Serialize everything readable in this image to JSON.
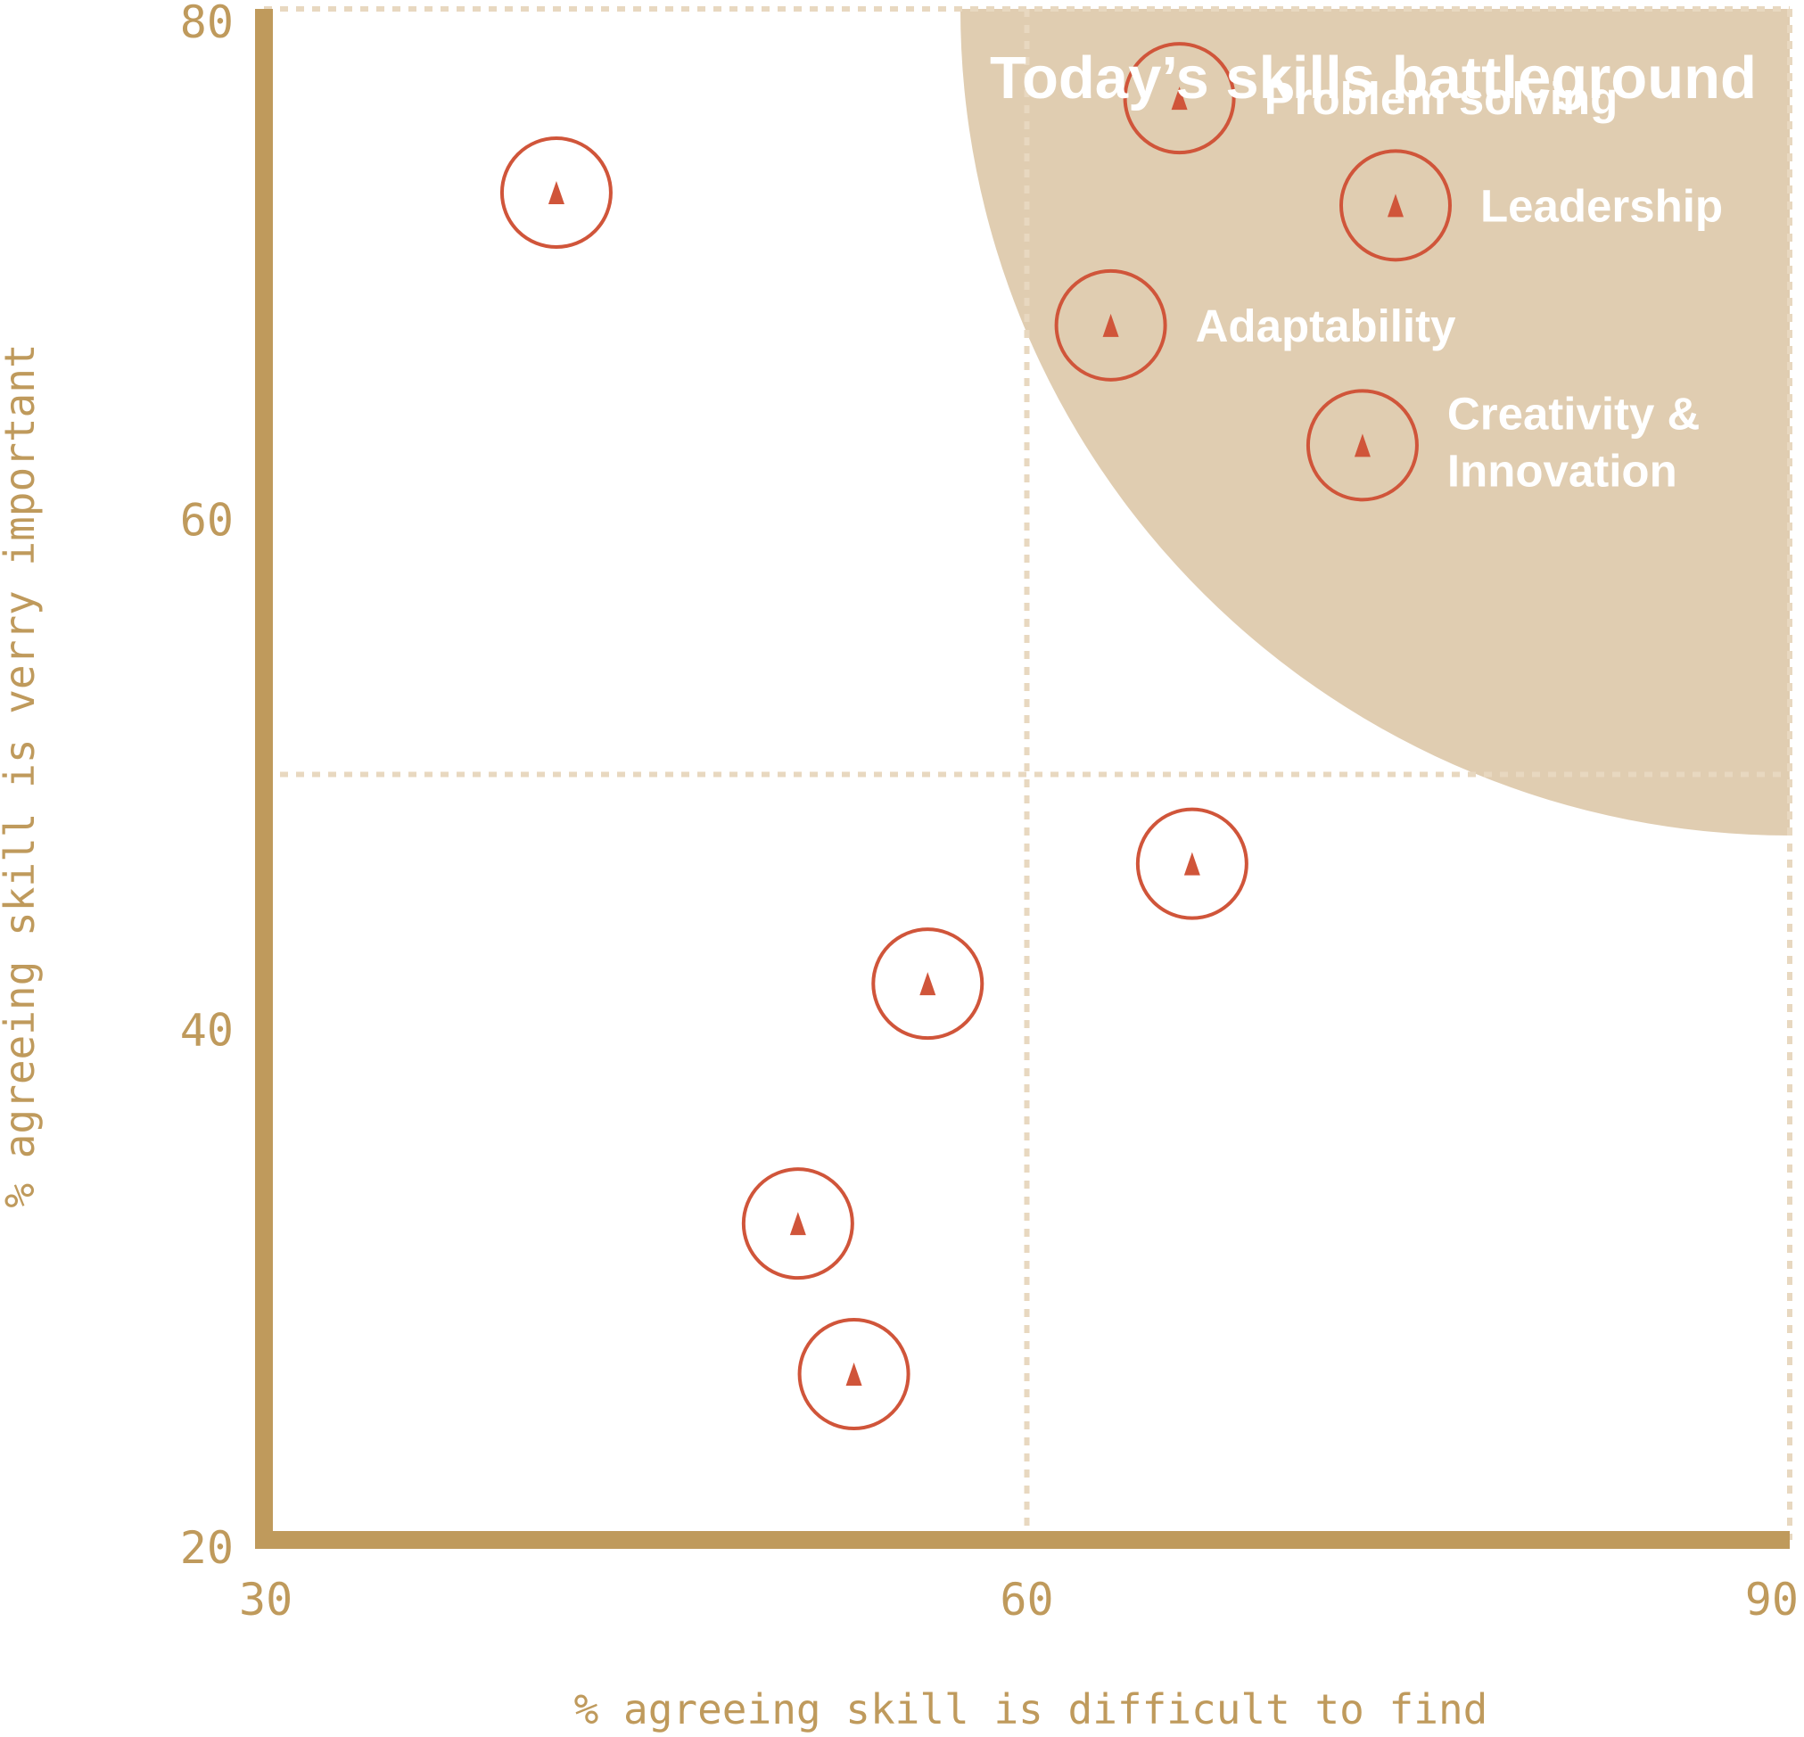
{
  "chart_data": {
    "type": "scatter",
    "title": "",
    "xlabel": "% agreeing skill is difficult to find",
    "ylabel": "% agreeing skill is verry  important",
    "xlim": [
      30,
      90
    ],
    "ylim": [
      20,
      80
    ],
    "xticks": [
      "30",
      "60",
      "90"
    ],
    "yticks": [
      "20",
      "40",
      "60",
      "80"
    ],
    "quadrant_dividers": {
      "x": 60,
      "y": 50
    },
    "highlight_region": {
      "label": "Today’s skills battleground",
      "color": "#e0cdb1"
    },
    "grid": false,
    "colors": {
      "axis": "#bf9a5c",
      "marker": "#d0553a",
      "divider": "#e8d8c0"
    },
    "series": [
      {
        "points": [
          {
            "x": 41.5,
            "y": 72.8,
            "label": ""
          },
          {
            "x": 66.0,
            "y": 76.5,
            "label": "Problem solving"
          },
          {
            "x": 74.5,
            "y": 72.3,
            "label": "Leadership"
          },
          {
            "x": 63.3,
            "y": 67.6,
            "label": "Adaptability"
          },
          {
            "x": 73.2,
            "y": 62.9,
            "labels": [
              "Creativity &",
              "Innovation"
            ]
          },
          {
            "x": 66.5,
            "y": 46.5,
            "label": ""
          },
          {
            "x": 56.1,
            "y": 41.8,
            "label": ""
          },
          {
            "x": 51.0,
            "y": 32.4,
            "label": ""
          },
          {
            "x": 53.2,
            "y": 26.5,
            "label": ""
          }
        ]
      }
    ]
  }
}
